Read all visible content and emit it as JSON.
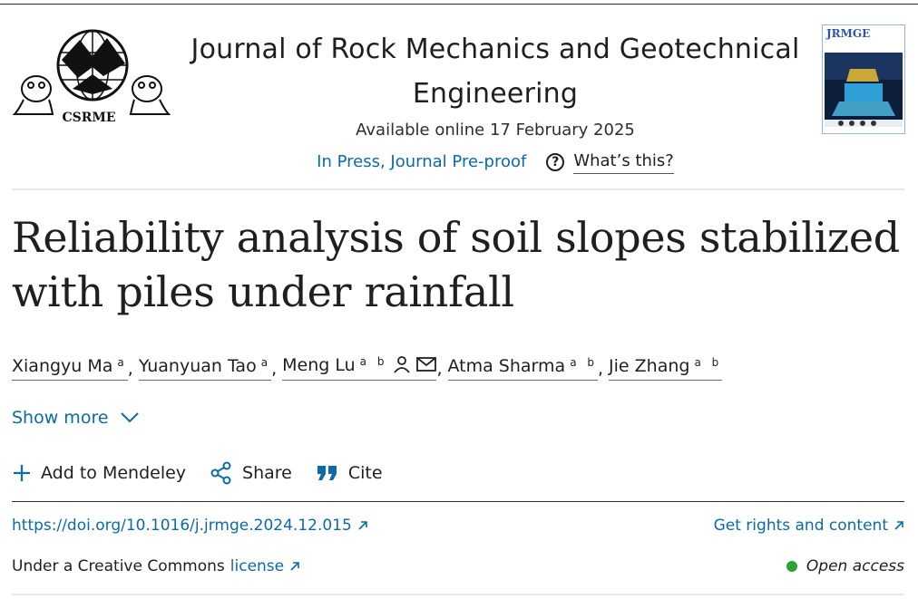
{
  "header": {
    "society": "CSRME",
    "journal_title": "Journal of Rock Mechanics and Geotechnical Engineering",
    "available": "Available online 17 February 2025",
    "status_link": "In Press, Journal Pre-proof",
    "whats_this": "What’s this?",
    "cover_title": "JRMGE"
  },
  "article": {
    "title": "Reliability analysis of soil slopes stabilized with piles under rainfall",
    "authors": [
      {
        "name": "Xiangyu Ma",
        "aff": "a"
      },
      {
        "name": "Yuanyuan Tao",
        "aff": "a"
      },
      {
        "name": "Meng Lu",
        "aff": "a b"
      },
      {
        "name": "Atma Sharma",
        "aff": "a b"
      },
      {
        "name": "Jie Zhang",
        "aff": "a b"
      }
    ],
    "show_more": "Show more"
  },
  "actions": {
    "mendeley": "Add to Mendeley",
    "share": "Share",
    "cite": "Cite"
  },
  "links": {
    "doi": "https://doi.org/10.1016/j.jrmge.2024.12.015",
    "rights": "Get rights and content",
    "license_prefix": "Under a Creative Commons",
    "license_link": "license",
    "open_access": "Open access"
  },
  "colors": {
    "link": "#0c6aa8",
    "open_access_dot": "#27a532"
  }
}
